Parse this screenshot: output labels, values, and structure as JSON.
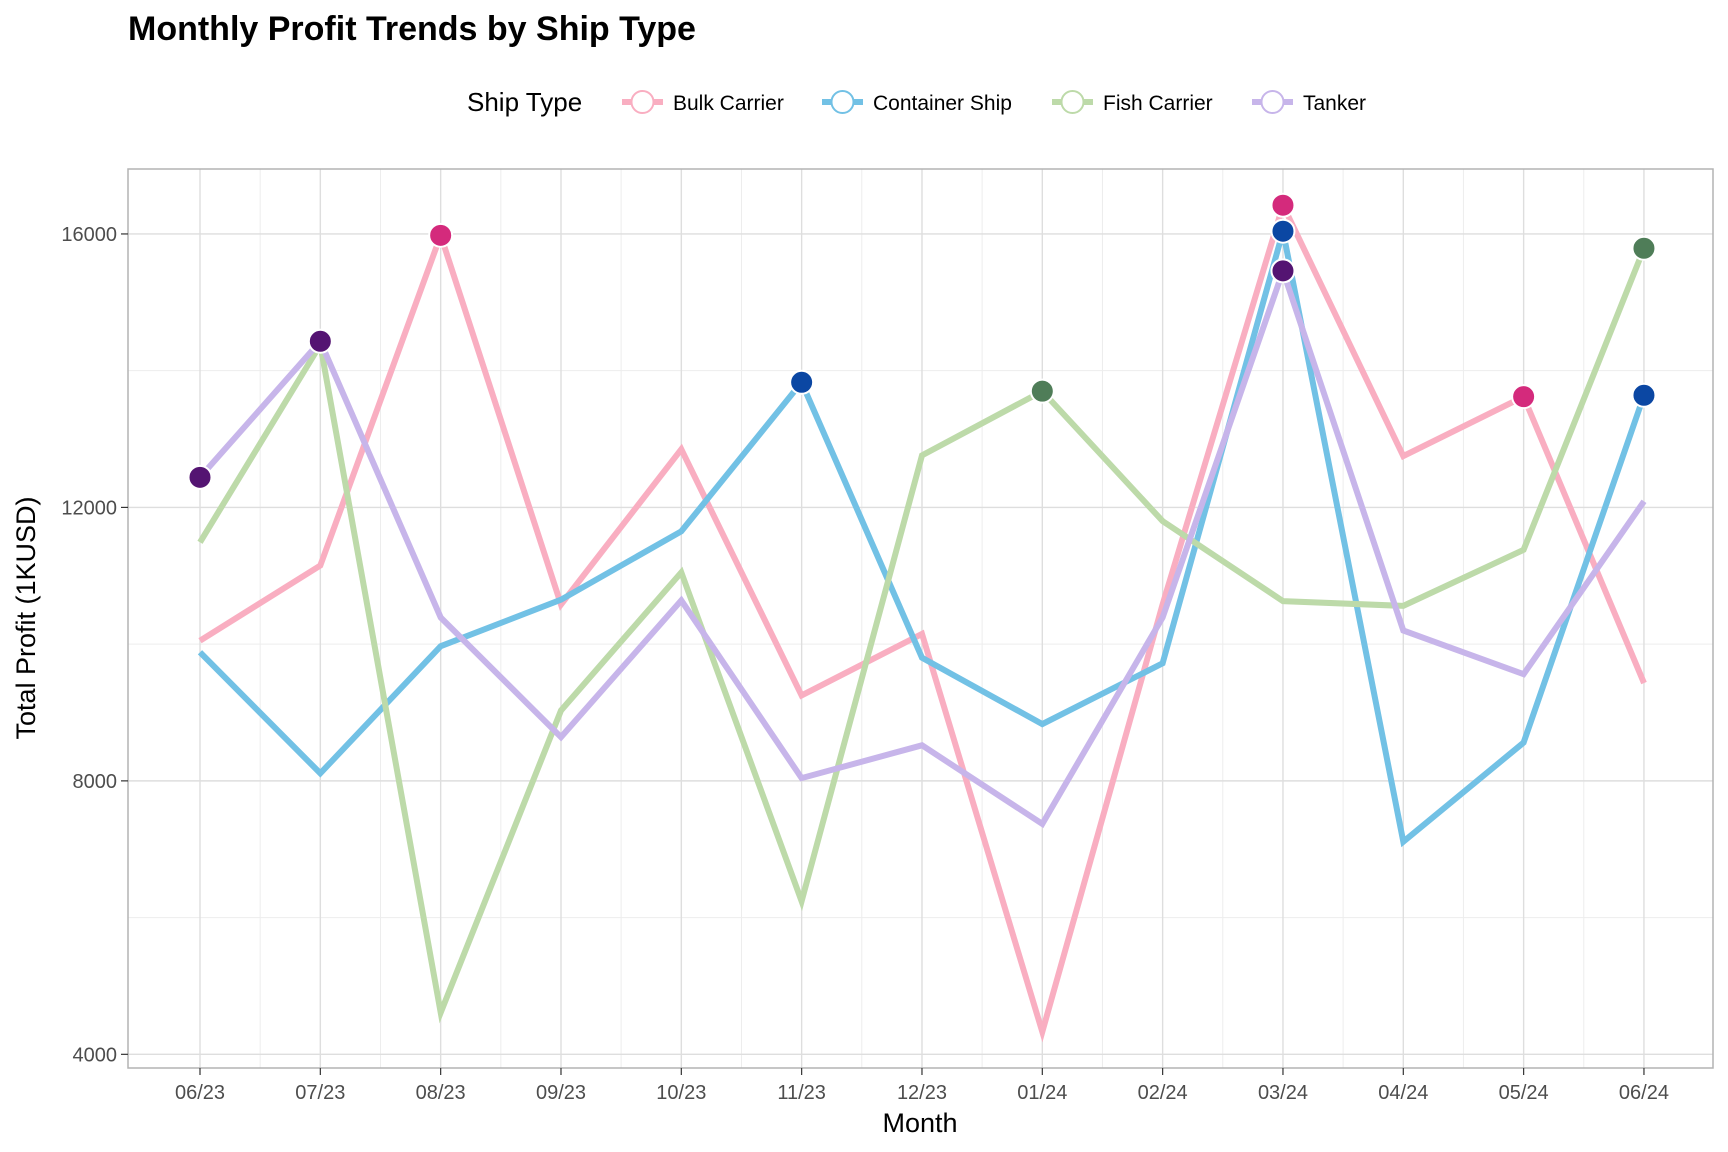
{
  "chart_data": {
    "type": "line",
    "title": "Monthly Profit Trends by Ship Type",
    "xlabel": "Month",
    "ylabel": "Total Profit (1KUSD)",
    "categories": [
      "06/23",
      "07/23",
      "08/23",
      "09/23",
      "10/23",
      "11/23",
      "12/23",
      "01/24",
      "02/24",
      "03/24",
      "04/24",
      "05/24",
      "06/24"
    ],
    "ylim": [
      3800,
      16950
    ],
    "yticks": [
      4000,
      8000,
      12000,
      16000
    ],
    "grid": true,
    "legend": {
      "title": "Ship Type",
      "position": "top"
    },
    "series": [
      {
        "name": "Bulk Carrier",
        "color": "#f9aec1",
        "highlight_color": "#d42a7c",
        "values": [
          10050,
          11150,
          15980,
          10580,
          12850,
          9250,
          10150,
          4330,
          10580,
          16420,
          12750,
          13620,
          9430
        ],
        "highlighted": [
          2,
          9,
          11
        ]
      },
      {
        "name": "Container Ship",
        "color": "#72c1e5",
        "highlight_color": "#0b47a3",
        "values": [
          9880,
          8110,
          9970,
          10650,
          11650,
          13830,
          9800,
          8830,
          9720,
          16040,
          7110,
          8560,
          13640
        ],
        "highlighted": [
          5,
          9,
          12
        ]
      },
      {
        "name": "Fish Carrier",
        "color": "#bddaa9",
        "highlight_color": "#4f7d58",
        "values": [
          11490,
          14380,
          4610,
          9030,
          11050,
          6240,
          12760,
          13700,
          11800,
          10630,
          10560,
          11380,
          15790
        ],
        "highlighted": [
          7,
          12
        ]
      },
      {
        "name": "Tanker",
        "color": "#c7b5ea",
        "highlight_color": "#541472",
        "values": [
          12440,
          14430,
          10390,
          8640,
          10640,
          8040,
          8520,
          7370,
          10390,
          15460,
          10200,
          9560,
          12090
        ],
        "highlighted": [
          0,
          1,
          9
        ]
      }
    ]
  }
}
